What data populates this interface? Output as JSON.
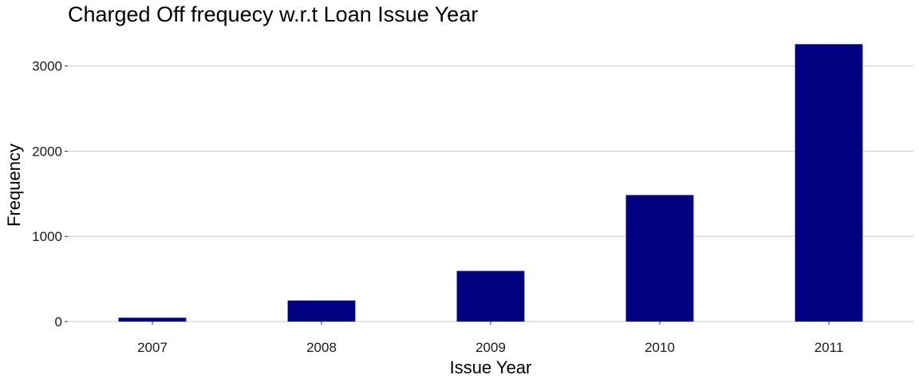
{
  "chart_data": {
    "type": "bar",
    "title": "Charged Off frequecy w.r.t Loan Issue Year",
    "xlabel": "Issue Year",
    "ylabel": "Frequency",
    "categories": [
      "2007",
      "2008",
      "2009",
      "2010",
      "2011"
    ],
    "values": [
      45,
      247,
      594,
      1485,
      3256
    ],
    "ylim": [
      0,
      3400
    ],
    "yticks": [
      0,
      1000,
      2000,
      3000
    ],
    "grid": true,
    "legend": "none",
    "bar_color": "#000080",
    "grid_color": "#d3d3d3"
  }
}
